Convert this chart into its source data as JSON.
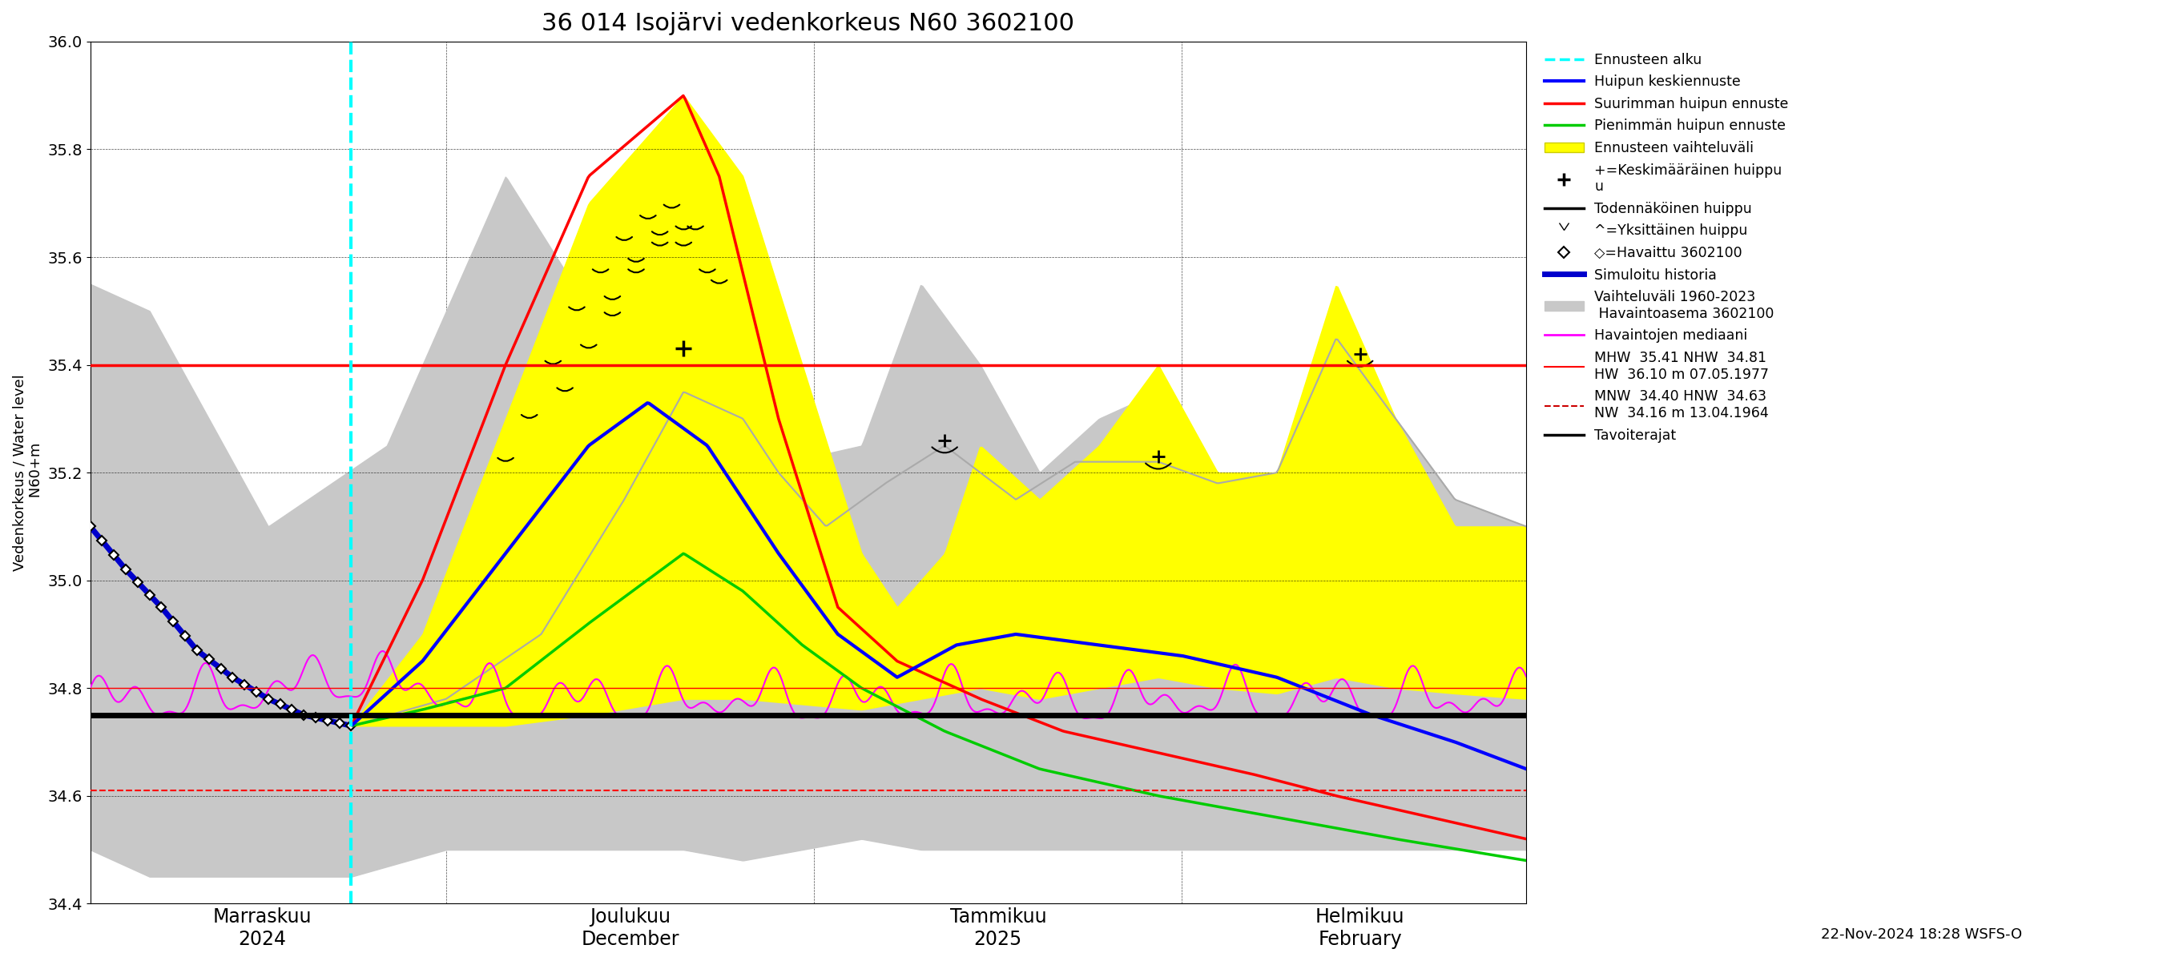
{
  "title": "36 014 Isojärvi vedenkorkeus N60 3602100",
  "ylabel": "Vedenkorkeus / Water level\n N60+m",
  "ylim": [
    34.4,
    36.0
  ],
  "yticks": [
    34.4,
    34.6,
    34.8,
    35.0,
    35.2,
    35.4,
    35.6,
    35.8,
    36.0
  ],
  "total_days": 121,
  "forecast_start": 22,
  "hline_black": 34.75,
  "hline_red_solid": 35.4,
  "hline_red_dashed": 34.61,
  "hline_thin_red": 34.8,
  "footnote": "22-Nov-2024 18:28 WSFS-O",
  "xtick_positions": [
    14.5,
    45.5,
    76.5,
    107
  ],
  "xtick_labels": [
    "Marraskuu\n2024",
    "Joulukuu\nDecember",
    "Tammikuu\n2025",
    "Helmikuu\nFebruary"
  ],
  "xgrid_positions": [
    0,
    30,
    61,
    92,
    121
  ],
  "colors": {
    "cyan_vline": "#00ffff",
    "blue_forecast": "#0000ff",
    "red_forecast": "#ff0000",
    "green_forecast": "#00cc00",
    "yellow_band": "#ffff00",
    "grey_band": "#c8c8c8",
    "grey_sim": "#aaaaaa",
    "magenta": "#ff00ff",
    "blue_hist": "#0000cc",
    "black": "#000000",
    "dark_red_dashed": "#cc0000"
  }
}
